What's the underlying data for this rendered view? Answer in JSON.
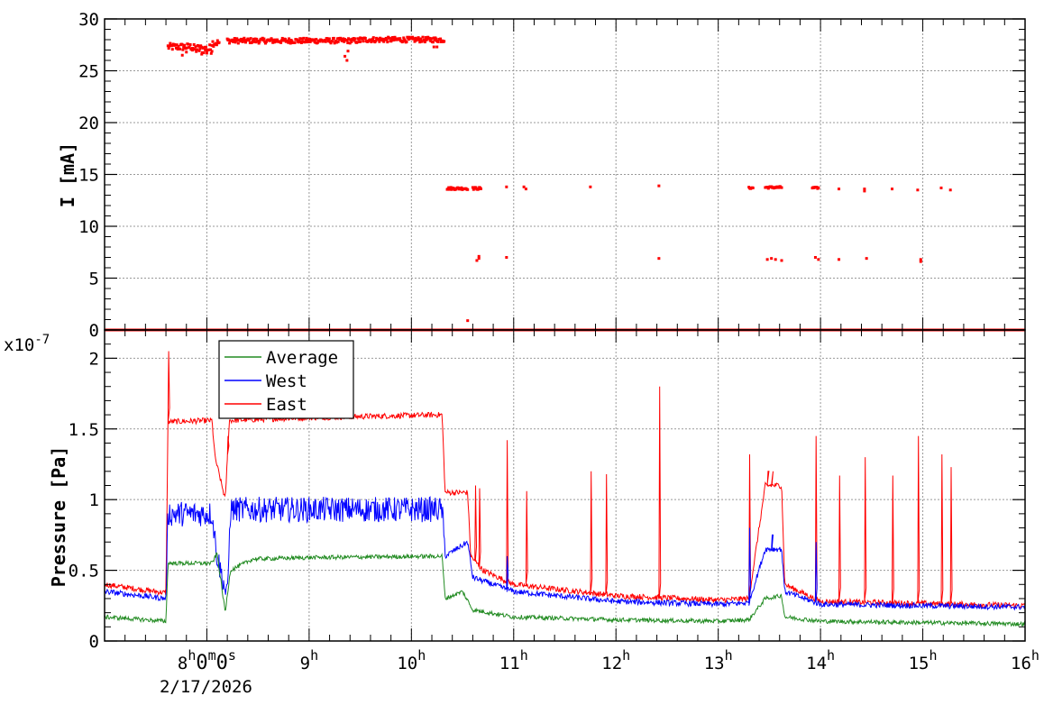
{
  "chart_data": [
    {
      "type": "scatter",
      "title": "",
      "xlabel": "",
      "ylabel": "I [mA]",
      "ylim": [
        0,
        30
      ],
      "yticks": [
        0,
        5,
        10,
        15,
        20,
        25,
        30
      ],
      "xlim_hours": [
        7.0,
        16.0
      ],
      "grid": true,
      "series": [
        {
          "color": "#ff0000",
          "clusters": [
            {
              "x": [
                7.62,
                7.86
              ],
              "y": 27.3,
              "spread": 0.35
            },
            {
              "x": [
                7.86,
                8.05
              ],
              "y": 27.1,
              "spread": 0.45
            },
            {
              "x": [
                8.05,
                8.12
              ],
              "y": 27.7,
              "spread": 0.35
            },
            {
              "x": [
                8.2,
                9.5
              ],
              "y": 27.9,
              "spread": 0.25
            },
            {
              "x": [
                9.5,
                10.32
              ],
              "y": 28.0,
              "spread": 0.25
            },
            {
              "x": [
                10.35,
                10.55
              ],
              "y": 13.65,
              "spread": 0.12
            },
            {
              "x": [
                10.6,
                10.68
              ],
              "y": 13.65,
              "spread": 0.12
            },
            {
              "x": [
                13.3,
                13.34
              ],
              "y": 13.7,
              "spread": 0.08
            },
            {
              "x": [
                13.46,
                13.62
              ],
              "y": 13.75,
              "spread": 0.1
            },
            {
              "x": [
                13.92,
                13.98
              ],
              "y": 13.7,
              "spread": 0.08
            }
          ],
          "points": [
            [
              7.76,
              26.5
            ],
            [
              7.8,
              26.8
            ],
            [
              7.95,
              26.6
            ],
            [
              8.0,
              26.7
            ],
            [
              9.35,
              26.4
            ],
            [
              9.37,
              26.0
            ],
            [
              9.38,
              26.9
            ],
            [
              10.22,
              27.3
            ],
            [
              10.25,
              27.3
            ],
            [
              10.55,
              0.9
            ],
            [
              10.64,
              6.7
            ],
            [
              10.66,
              6.9
            ],
            [
              10.66,
              7.1
            ],
            [
              10.93,
              13.8
            ],
            [
              10.93,
              7.0
            ],
            [
              11.1,
              13.8
            ],
            [
              11.12,
              13.6
            ],
            [
              11.75,
              13.8
            ],
            [
              12.42,
              13.9
            ],
            [
              12.42,
              6.9
            ],
            [
              13.48,
              6.8
            ],
            [
              13.52,
              6.9
            ],
            [
              13.56,
              6.8
            ],
            [
              13.62,
              6.7
            ],
            [
              13.95,
              7.0
            ],
            [
              13.98,
              6.8
            ],
            [
              14.18,
              13.6
            ],
            [
              14.18,
              6.8
            ],
            [
              14.43,
              13.6
            ],
            [
              14.43,
              13.4
            ],
            [
              14.45,
              6.9
            ],
            [
              14.7,
              13.6
            ],
            [
              14.95,
              13.5
            ],
            [
              14.98,
              6.8
            ],
            [
              14.98,
              6.6
            ],
            [
              15.18,
              13.7
            ],
            [
              15.27,
              13.5
            ]
          ],
          "zero_line": 0
        }
      ]
    },
    {
      "type": "line",
      "title": "",
      "xlabel": "",
      "ylabel": "Pressure [Pa]",
      "y_multiplier": "x10",
      "y_exponent": "-7",
      "ylim": [
        0,
        2.2
      ],
      "yticks": [
        0,
        0.5,
        1,
        1.5,
        2
      ],
      "ytick_labels": [
        "0",
        "0.5",
        "1",
        "1.5",
        "2"
      ],
      "xlim_hours": [
        7.0,
        16.0
      ],
      "grid": true,
      "legend": {
        "placement": "top-left",
        "entries": [
          {
            "label": "Average",
            "color": "#228b22"
          },
          {
            "label": "West",
            "color": "#0000ff"
          },
          {
            "label": "East",
            "color": "#ff0000"
          }
        ]
      },
      "series": [
        {
          "name": "East",
          "color": "#ff0000",
          "baseline": [
            [
              7.0,
              0.4
            ],
            [
              7.6,
              0.34
            ],
            [
              7.62,
              1.55
            ],
            [
              8.05,
              1.56
            ],
            [
              8.08,
              1.3
            ],
            [
              8.18,
              1.0
            ],
            [
              8.22,
              1.56
            ],
            [
              9.0,
              1.58
            ],
            [
              10.3,
              1.6
            ],
            [
              10.33,
              1.05
            ],
            [
              10.55,
              1.05
            ],
            [
              10.58,
              0.6
            ],
            [
              10.7,
              0.5
            ],
            [
              11.0,
              0.4
            ],
            [
              12.0,
              0.32
            ],
            [
              13.0,
              0.29
            ],
            [
              13.3,
              0.3
            ],
            [
              13.46,
              1.1
            ],
            [
              13.62,
              1.1
            ],
            [
              13.65,
              0.4
            ],
            [
              14.0,
              0.28
            ],
            [
              16.0,
              0.25
            ]
          ],
          "noise": 0.02,
          "spikes": [
            [
              7.62,
              2.05
            ],
            [
              8.2,
              1.45
            ],
            [
              10.62,
              1.1
            ],
            [
              10.66,
              1.08
            ],
            [
              10.93,
              1.42
            ],
            [
              11.12,
              1.06
            ],
            [
              11.75,
              1.2
            ],
            [
              11.9,
              1.18
            ],
            [
              12.42,
              1.8
            ],
            [
              13.3,
              1.32
            ],
            [
              13.48,
              1.2
            ],
            [
              13.52,
              1.15
            ],
            [
              13.95,
              1.45
            ],
            [
              14.18,
              1.17
            ],
            [
              14.43,
              1.3
            ],
            [
              14.7,
              1.17
            ],
            [
              14.95,
              1.45
            ],
            [
              15.18,
              1.32
            ],
            [
              15.27,
              1.23
            ]
          ]
        },
        {
          "name": "West",
          "color": "#0000ff",
          "baseline": [
            [
              7.0,
              0.35
            ],
            [
              7.6,
              0.3
            ],
            [
              7.62,
              0.9
            ],
            [
              8.05,
              0.9
            ],
            [
              8.1,
              0.6
            ],
            [
              8.2,
              0.3
            ],
            [
              8.23,
              0.93
            ],
            [
              9.0,
              0.93
            ],
            [
              10.3,
              0.93
            ],
            [
              10.33,
              0.6
            ],
            [
              10.55,
              0.7
            ],
            [
              10.6,
              0.45
            ],
            [
              11.0,
              0.35
            ],
            [
              12.0,
              0.28
            ],
            [
              13.0,
              0.26
            ],
            [
              13.3,
              0.27
            ],
            [
              13.46,
              0.65
            ],
            [
              13.62,
              0.65
            ],
            [
              13.65,
              0.35
            ],
            [
              14.0,
              0.26
            ],
            [
              16.0,
              0.24
            ]
          ],
          "noise": 0.09,
          "noise_after": 0.02,
          "spikes": [
            [
              13.3,
              0.8
            ],
            [
              13.52,
              0.75
            ],
            [
              13.95,
              0.7
            ],
            [
              10.93,
              0.6
            ]
          ]
        },
        {
          "name": "Average",
          "color": "#228b22",
          "baseline": [
            [
              7.0,
              0.17
            ],
            [
              7.6,
              0.14
            ],
            [
              7.62,
              0.55
            ],
            [
              8.05,
              0.55
            ],
            [
              8.1,
              0.62
            ],
            [
              8.18,
              0.2
            ],
            [
              8.23,
              0.5
            ],
            [
              8.45,
              0.58
            ],
            [
              9.0,
              0.59
            ],
            [
              10.3,
              0.6
            ],
            [
              10.33,
              0.3
            ],
            [
              10.5,
              0.35
            ],
            [
              10.6,
              0.22
            ],
            [
              11.0,
              0.17
            ],
            [
              12.0,
              0.15
            ],
            [
              13.0,
              0.14
            ],
            [
              13.3,
              0.15
            ],
            [
              13.46,
              0.3
            ],
            [
              13.62,
              0.32
            ],
            [
              13.65,
              0.17
            ],
            [
              14.0,
              0.14
            ],
            [
              16.0,
              0.12
            ]
          ],
          "noise": 0.015,
          "spikes": []
        }
      ]
    }
  ],
  "x_axis": {
    "tick_labels": [
      {
        "hour": 8.0,
        "main": "8",
        "parts": [
          {
            "sup": "h"
          },
          {
            "text": "0"
          },
          {
            "sup": "m"
          },
          {
            "text": "0"
          },
          {
            "sup": "s"
          }
        ]
      },
      {
        "hour": 9.0,
        "main": "9",
        "parts": [
          {
            "sup": "h"
          }
        ]
      },
      {
        "hour": 10.0,
        "main": "10",
        "parts": [
          {
            "sup": "h"
          }
        ]
      },
      {
        "hour": 11.0,
        "main": "11",
        "parts": [
          {
            "sup": "h"
          }
        ]
      },
      {
        "hour": 12.0,
        "main": "12",
        "parts": [
          {
            "sup": "h"
          }
        ]
      },
      {
        "hour": 13.0,
        "main": "13",
        "parts": [
          {
            "sup": "h"
          }
        ]
      },
      {
        "hour": 14.0,
        "main": "14",
        "parts": [
          {
            "sup": "h"
          }
        ]
      },
      {
        "hour": 15.0,
        "main": "15",
        "parts": [
          {
            "sup": "h"
          }
        ]
      },
      {
        "hour": 16.0,
        "main": "16",
        "parts": [
          {
            "sup": "h"
          }
        ]
      }
    ],
    "date_label": "2/17/2026"
  }
}
